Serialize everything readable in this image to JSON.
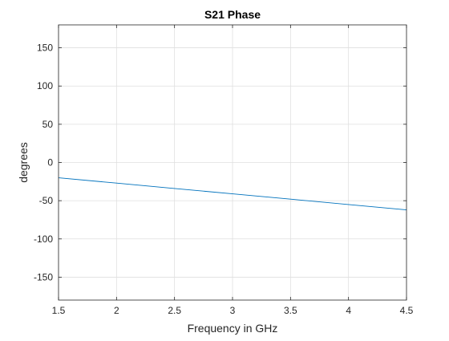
{
  "chart_data": {
    "type": "line",
    "title": "S21 Phase",
    "xlabel": "Frequency in GHz",
    "ylabel": "degrees",
    "xlim": [
      1.5,
      4.5
    ],
    "ylim": [
      -180,
      180
    ],
    "xticks": [
      1.5,
      2,
      2.5,
      3,
      3.5,
      4,
      4.5
    ],
    "yticks": [
      -150,
      -100,
      -50,
      0,
      50,
      100,
      150
    ],
    "xtick_labels": [
      "1.5",
      "2",
      "2.5",
      "3",
      "3.5",
      "4",
      "4.5"
    ],
    "ytick_labels": [
      "-150",
      "-100",
      "-50",
      "0",
      "50",
      "100",
      "150"
    ],
    "grid": true,
    "series": [
      {
        "color": "#0072BD",
        "x": [
          1.5,
          2.0,
          2.5,
          3.0,
          3.5,
          4.0,
          4.5
        ],
        "y": [
          -20,
          -27,
          -34,
          -41,
          -48,
          -55,
          -62
        ]
      }
    ]
  }
}
